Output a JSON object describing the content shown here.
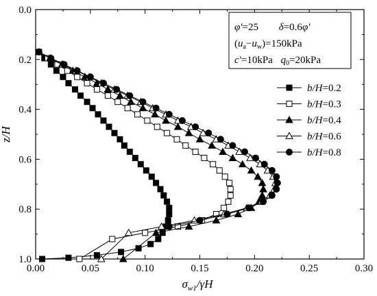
{
  "chart_data": {
    "type": "line",
    "xlabel": "σw1/γH",
    "ylabel": "z/H",
    "xlim": [
      0.0,
      0.3
    ],
    "ylim": [
      0.0,
      1.0
    ],
    "y_inverted": true,
    "x_axis_position": "top-and-bottom",
    "x_ticks": [
      0.0,
      0.05,
      0.1,
      0.15,
      0.2,
      0.25,
      0.3
    ],
    "x_tick_labels": [
      "0.00",
      "0.05",
      "0.10",
      "0.15",
      "0.20",
      "0.25",
      "0.30"
    ],
    "y_ticks": [
      0.0,
      0.2,
      0.4,
      0.6,
      0.8,
      1.0
    ],
    "y_tick_labels": [
      "0.0",
      "0.2",
      "0.4",
      "0.6",
      "0.8",
      "1.0"
    ],
    "grid": false,
    "legend_position": "right",
    "annotation_lines": [
      "φ'=25     δ=0.6φ'",
      "(ua−uw)=150kPa",
      "c'=10kPa   q0=20kPa"
    ],
    "series": [
      {
        "name": "b/H=0.2",
        "marker": "square-filled",
        "x": [
          0.003,
          0.008,
          0.014,
          0.019,
          0.025,
          0.03,
          0.036,
          0.041,
          0.047,
          0.052,
          0.057,
          0.062,
          0.067,
          0.072,
          0.077,
          0.081,
          0.086,
          0.091,
          0.096,
          0.101,
          0.106,
          0.11,
          0.114,
          0.117,
          0.12,
          0.122,
          0.122,
          0.121,
          0.119,
          0.116,
          0.112,
          0.105,
          0.094,
          0.078,
          0.056,
          0.03,
          0.006
        ],
        "y": [
          0.17,
          0.195,
          0.22,
          0.245,
          0.27,
          0.295,
          0.32,
          0.345,
          0.37,
          0.395,
          0.42,
          0.445,
          0.47,
          0.495,
          0.52,
          0.545,
          0.57,
          0.595,
          0.62,
          0.645,
          0.67,
          0.695,
          0.72,
          0.745,
          0.77,
          0.795,
          0.82,
          0.845,
          0.87,
          0.895,
          0.92,
          0.94,
          0.957,
          0.972,
          0.985,
          0.995,
          1.0
        ]
      },
      {
        "name": "b/H=0.3",
        "marker": "square-open",
        "x": [
          0.003,
          0.011,
          0.02,
          0.029,
          0.038,
          0.047,
          0.056,
          0.066,
          0.075,
          0.084,
          0.093,
          0.102,
          0.111,
          0.12,
          0.129,
          0.137,
          0.146,
          0.154,
          0.162,
          0.168,
          0.173,
          0.177,
          0.178,
          0.178,
          0.176,
          0.172,
          0.165,
          0.152,
          0.13,
          0.1,
          0.07,
          0.04
        ],
        "y": [
          0.17,
          0.195,
          0.22,
          0.245,
          0.27,
          0.295,
          0.32,
          0.345,
          0.37,
          0.395,
          0.42,
          0.445,
          0.47,
          0.495,
          0.52,
          0.545,
          0.57,
          0.595,
          0.62,
          0.645,
          0.67,
          0.695,
          0.72,
          0.745,
          0.77,
          0.795,
          0.82,
          0.845,
          0.87,
          0.895,
          0.92,
          1.0
        ]
      },
      {
        "name": "b/H=0.4",
        "marker": "triangle-filled",
        "x": [
          0.003,
          0.013,
          0.024,
          0.034,
          0.045,
          0.056,
          0.066,
          0.077,
          0.087,
          0.098,
          0.109,
          0.119,
          0.13,
          0.14,
          0.15,
          0.161,
          0.171,
          0.18,
          0.189,
          0.197,
          0.203,
          0.207,
          0.208,
          0.207,
          0.204,
          0.197,
          0.185,
          0.165,
          0.14,
          0.11,
          0.08
        ],
        "y": [
          0.17,
          0.195,
          0.22,
          0.245,
          0.27,
          0.295,
          0.32,
          0.345,
          0.37,
          0.395,
          0.42,
          0.445,
          0.47,
          0.495,
          0.52,
          0.545,
          0.57,
          0.595,
          0.62,
          0.645,
          0.67,
          0.695,
          0.72,
          0.745,
          0.77,
          0.795,
          0.82,
          0.845,
          0.87,
          0.895,
          1.0
        ]
      },
      {
        "name": "b/H=0.6",
        "marker": "triangle-open",
        "x": [
          0.003,
          0.014,
          0.025,
          0.037,
          0.049,
          0.06,
          0.072,
          0.084,
          0.096,
          0.107,
          0.119,
          0.13,
          0.142,
          0.153,
          0.165,
          0.176,
          0.186,
          0.196,
          0.205,
          0.212,
          0.217,
          0.219,
          0.218,
          0.214,
          0.206,
          0.193,
          0.172,
          0.145,
          0.115,
          0.085,
          0.06
        ],
        "y": [
          0.17,
          0.195,
          0.22,
          0.245,
          0.27,
          0.295,
          0.32,
          0.345,
          0.37,
          0.395,
          0.42,
          0.445,
          0.47,
          0.495,
          0.52,
          0.545,
          0.57,
          0.595,
          0.62,
          0.645,
          0.67,
          0.695,
          0.72,
          0.745,
          0.77,
          0.795,
          0.82,
          0.845,
          0.87,
          0.895,
          1.0
        ]
      },
      {
        "name": "b/H=0.8",
        "marker": "circle-filled",
        "x": [
          0.003,
          0.014,
          0.026,
          0.038,
          0.05,
          0.062,
          0.074,
          0.086,
          0.098,
          0.11,
          0.122,
          0.134,
          0.146,
          0.158,
          0.169,
          0.18,
          0.191,
          0.201,
          0.209,
          0.216,
          0.22,
          0.221,
          0.22,
          0.216,
          0.208,
          0.195,
          0.175,
          0.15,
          0.122
        ],
        "y": [
          0.17,
          0.195,
          0.22,
          0.245,
          0.27,
          0.295,
          0.32,
          0.345,
          0.37,
          0.395,
          0.42,
          0.445,
          0.47,
          0.495,
          0.52,
          0.545,
          0.57,
          0.595,
          0.62,
          0.645,
          0.67,
          0.695,
          0.72,
          0.745,
          0.77,
          0.795,
          0.82,
          0.845,
          0.87
        ]
      }
    ]
  }
}
